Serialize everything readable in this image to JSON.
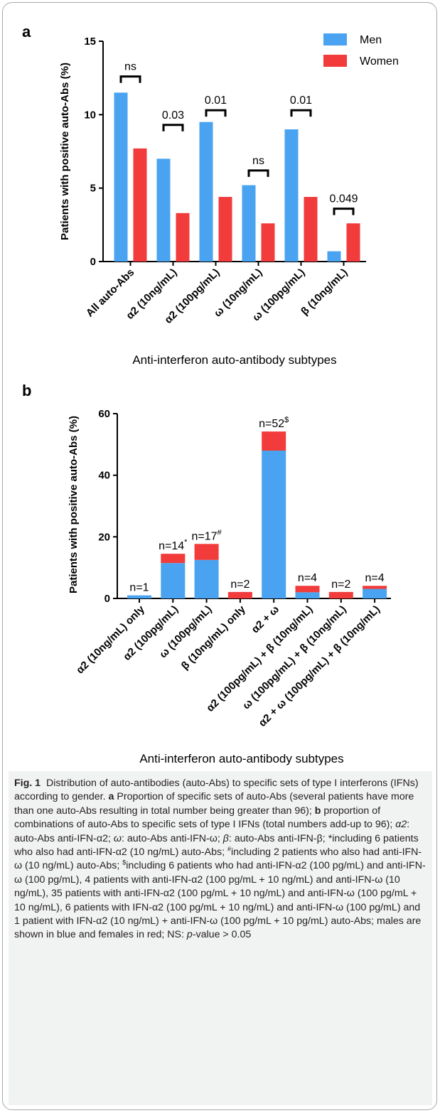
{
  "colors": {
    "men": "#4aa3f0",
    "women": "#f23b3b",
    "axis": "#000000"
  },
  "chart_data": [
    {
      "type": "bar",
      "panel": "a",
      "ylabel": "Patients with positive auto-Abs (%)",
      "xlabel": "Anti-interferon auto-antibody subtypes",
      "ylim": [
        0,
        15
      ],
      "yticks": [
        "0",
        "5",
        "10",
        "15"
      ],
      "ytick_values": [
        0,
        5,
        10,
        15
      ],
      "legend": {
        "placement": "top-right",
        "entries": [
          "Men",
          "Women"
        ]
      },
      "categories": [
        "All auto-Abs",
        "α2 (10ng/mL)",
        "α2 (100pg/mL)",
        "ω (10ng/mL)",
        "ω (100pg/mL)",
        "β (10ng/mL)"
      ],
      "series": [
        {
          "name": "Men",
          "values": [
            11.5,
            7.0,
            9.5,
            5.2,
            9.0,
            0.7
          ]
        },
        {
          "name": "Women",
          "values": [
            7.7,
            3.3,
            4.4,
            2.6,
            4.4,
            2.6
          ]
        }
      ],
      "annotations": [
        "ns",
        "0.03",
        "0.01",
        "ns",
        "0.01",
        "0.049"
      ],
      "bracket_heights": [
        12.6,
        9.3,
        10.3,
        6.2,
        10.3,
        3.6
      ]
    },
    {
      "type": "bar",
      "stacked": true,
      "panel": "b",
      "ylabel": "Patients with positive auto-Abs  (%)",
      "xlabel": "Anti-interferon auto-antibody subtypes",
      "ylim": [
        0,
        60
      ],
      "yticks": [
        "0",
        "20",
        "40",
        "60"
      ],
      "ytick_values": [
        0,
        20,
        40,
        60
      ],
      "categories": [
        "α2 (10ng/mL) only",
        "α2 (100pg/mL)",
        "ω (100pg/mL)",
        "β (10ng/mL) only",
        "α2 + ω",
        "α2 (100pg/mL) + β (10ng/mL)",
        "ω (100pg/mL) + β (10ng/mL)",
        "α2 + ω (100pg/mL) + β (10ng/mL)"
      ],
      "series": [
        {
          "name": "Men",
          "values": [
            1.0,
            11.5,
            12.5,
            0.0,
            48.0,
            2.0,
            0.0,
            3.1
          ]
        },
        {
          "name": "Women",
          "values": [
            0.0,
            3.0,
            5.2,
            2.1,
            6.2,
            2.1,
            2.1,
            1.0
          ]
        }
      ],
      "bar_labels": [
        "n=1",
        "n=14",
        "n=17",
        "n=2",
        "n=52",
        "n=4",
        "n=2",
        "n=4"
      ],
      "bar_label_sups": [
        "",
        "*",
        "#",
        "",
        "$",
        "",
        "",
        ""
      ]
    }
  ],
  "caption": {
    "fig_label": "Fig. 1",
    "intro": "Distribution of auto-antibodies (auto-Abs) to specific sets of type I interferons (IFNs) according to gender.",
    "panel_a_letter": "a",
    "panel_a_text": "Proportion of specific sets of auto-Abs (several patients have more than one auto-Abs resulting in total number being greater than 96);",
    "panel_b_letter": "b",
    "panel_b_text": "proportion of combinations of auto-Abs to specific sets of type I IFNs (total numbers add-up to 96);",
    "alpha_sym": "α2",
    "alpha_def": ": auto-Abs anti-IFN-α2;",
    "omega_sym": "ω",
    "omega_def": ": auto-Abs anti-IFN-ω;",
    "beta_sym": "β",
    "beta_def": ": auto-Abs anti-IFN-β;",
    "note_star_mark": "*",
    "note_star": "including 6 patients who also had anti-IFN-α2 (10 ng/mL) auto-Abs;",
    "note_hash_mark": "#",
    "note_hash": "including 2 patients who also had anti-IFN-ω (10 ng/mL) auto-Abs;",
    "note_dollar_mark": "$",
    "note_dollar": "including 6 patients who had anti-IFN-α2 (100 pg/mL) and anti-IFN-ω (100 pg/mL), 4 patients with anti-IFN-α2 (100 pg/mL + 10 ng/mL) and anti-IFN-ω (10 ng/mL), 35 patients with anti-IFN-α2 (100 pg/mL + 10 ng/mL) and anti-IFN-ω (100 pg/mL + 10 ng/mL), 6 patients with IFN-α2 (100 pg/mL + 10 ng/mL) and anti-IFN-ω (100 pg/mL) and 1 patient with IFN-α2 (10 ng/mL) + anti-IFN-ω (100 pg/mL + 10 pg/mL) auto-Abs; males are shown in blue and females in red; NS:",
    "p_sym": "p",
    "tail": "-value > 0.05"
  }
}
